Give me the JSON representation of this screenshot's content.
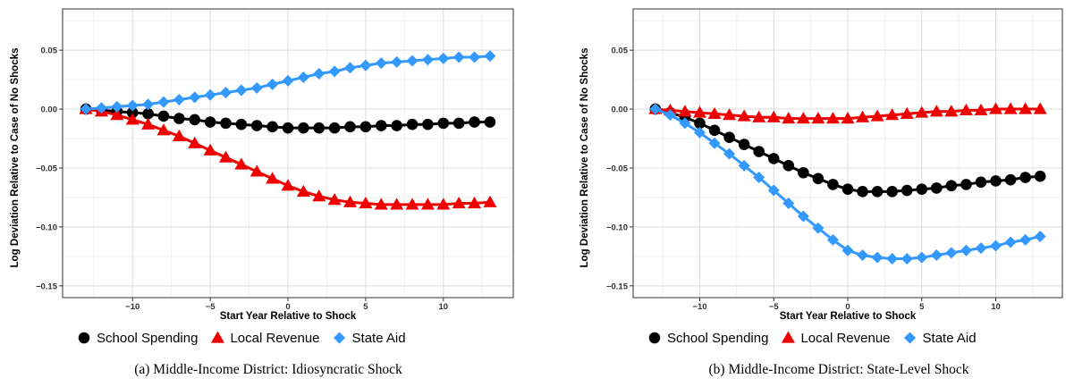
{
  "chart_data": [
    {
      "type": "line",
      "caption": "(a) Middle-Income District: Idiosyncratic Shock",
      "xlabel": "Start Year Relative to Shock",
      "ylabel": "Log Deviation Relative to Case of No Shocks",
      "xlim": [
        -14.5,
        14.5
      ],
      "ylim": [
        -0.16,
        0.085
      ],
      "xticks": [
        -10,
        -5,
        0,
        5,
        10
      ],
      "xtick_labels": [
        "−10",
        "−5",
        "0",
        "5",
        "10"
      ],
      "yticks": [
        -0.15,
        -0.1,
        -0.05,
        0.0,
        0.05
      ],
      "ytick_labels": [
        "−0.15",
        "−0.10",
        "−0.05",
        "0.00",
        "0.05"
      ],
      "grid": true,
      "legend_position": "bottom",
      "x": [
        -13,
        -12,
        -11,
        -10,
        -9,
        -8,
        -7,
        -6,
        -5,
        -4,
        -3,
        -2,
        -1,
        0,
        1,
        2,
        3,
        4,
        5,
        6,
        7,
        8,
        9,
        10,
        11,
        12,
        13
      ],
      "series": [
        {
          "name": "School Spending",
          "color": "#000000",
          "marker": "circle",
          "values": [
            0,
            -0.001,
            -0.002,
            -0.003,
            -0.004,
            -0.006,
            -0.008,
            -0.009,
            -0.011,
            -0.012,
            -0.013,
            -0.014,
            -0.015,
            -0.016,
            -0.016,
            -0.016,
            -0.016,
            -0.015,
            -0.015,
            -0.014,
            -0.014,
            -0.013,
            -0.013,
            -0.012,
            -0.012,
            -0.011,
            -0.011
          ]
        },
        {
          "name": "Local Revenue",
          "color": "#ee0000",
          "marker": "triangle",
          "values": [
            0,
            -0.002,
            -0.005,
            -0.009,
            -0.013,
            -0.018,
            -0.023,
            -0.029,
            -0.035,
            -0.041,
            -0.047,
            -0.053,
            -0.059,
            -0.065,
            -0.07,
            -0.074,
            -0.077,
            -0.079,
            -0.08,
            -0.081,
            -0.081,
            -0.081,
            -0.081,
            -0.081,
            -0.08,
            -0.08,
            -0.079
          ]
        },
        {
          "name": "State Aid",
          "color": "#3399ff",
          "marker": "diamond",
          "values": [
            0,
            0.001,
            0.002,
            0.003,
            0.004,
            0.006,
            0.008,
            0.01,
            0.012,
            0.014,
            0.016,
            0.018,
            0.021,
            0.024,
            0.027,
            0.03,
            0.032,
            0.035,
            0.037,
            0.039,
            0.04,
            0.041,
            0.042,
            0.043,
            0.044,
            0.044,
            0.045
          ]
        }
      ]
    },
    {
      "type": "line",
      "caption": "(b) Middle-Income District: State-Level Shock",
      "xlabel": "Start Year Relative to Shock",
      "ylabel": "Log Deviation Relative to Case of No Shocks",
      "xlim": [
        -14.5,
        14.5
      ],
      "ylim": [
        -0.16,
        0.085
      ],
      "xticks": [
        -10,
        -5,
        0,
        5,
        10
      ],
      "xtick_labels": [
        "−10",
        "−5",
        "0",
        "5",
        "10"
      ],
      "yticks": [
        -0.15,
        -0.1,
        -0.05,
        0.0,
        0.05
      ],
      "ytick_labels": [
        "−0.15",
        "−0.10",
        "−0.05",
        "0.00",
        "0.05"
      ],
      "grid": true,
      "legend_position": "bottom",
      "x": [
        -13,
        -12,
        -11,
        -10,
        -9,
        -8,
        -7,
        -6,
        -5,
        -4,
        -3,
        -2,
        -1,
        0,
        1,
        2,
        3,
        4,
        5,
        6,
        7,
        8,
        9,
        10,
        11,
        12,
        13
      ],
      "series": [
        {
          "name": "School Spending",
          "color": "#000000",
          "marker": "circle",
          "values": [
            0,
            -0.003,
            -0.007,
            -0.012,
            -0.018,
            -0.024,
            -0.03,
            -0.036,
            -0.042,
            -0.048,
            -0.054,
            -0.059,
            -0.064,
            -0.068,
            -0.07,
            -0.07,
            -0.07,
            -0.069,
            -0.068,
            -0.067,
            -0.065,
            -0.064,
            -0.062,
            -0.061,
            -0.06,
            -0.058,
            -0.057
          ]
        },
        {
          "name": "Local Revenue",
          "color": "#ee0000",
          "marker": "triangle",
          "values": [
            0,
            -0.001,
            -0.002,
            -0.003,
            -0.004,
            -0.005,
            -0.006,
            -0.007,
            -0.007,
            -0.008,
            -0.008,
            -0.008,
            -0.008,
            -0.008,
            -0.007,
            -0.006,
            -0.005,
            -0.004,
            -0.003,
            -0.002,
            -0.002,
            -0.001,
            -0.001,
            0,
            0,
            0,
            0
          ]
        },
        {
          "name": "State Aid",
          "color": "#3399ff",
          "marker": "diamond",
          "values": [
            0,
            -0.005,
            -0.012,
            -0.02,
            -0.029,
            -0.038,
            -0.048,
            -0.058,
            -0.069,
            -0.08,
            -0.091,
            -0.101,
            -0.111,
            -0.12,
            -0.124,
            -0.126,
            -0.127,
            -0.127,
            -0.126,
            -0.124,
            -0.122,
            -0.12,
            -0.118,
            -0.116,
            -0.113,
            -0.111,
            -0.108
          ]
        }
      ]
    }
  ]
}
